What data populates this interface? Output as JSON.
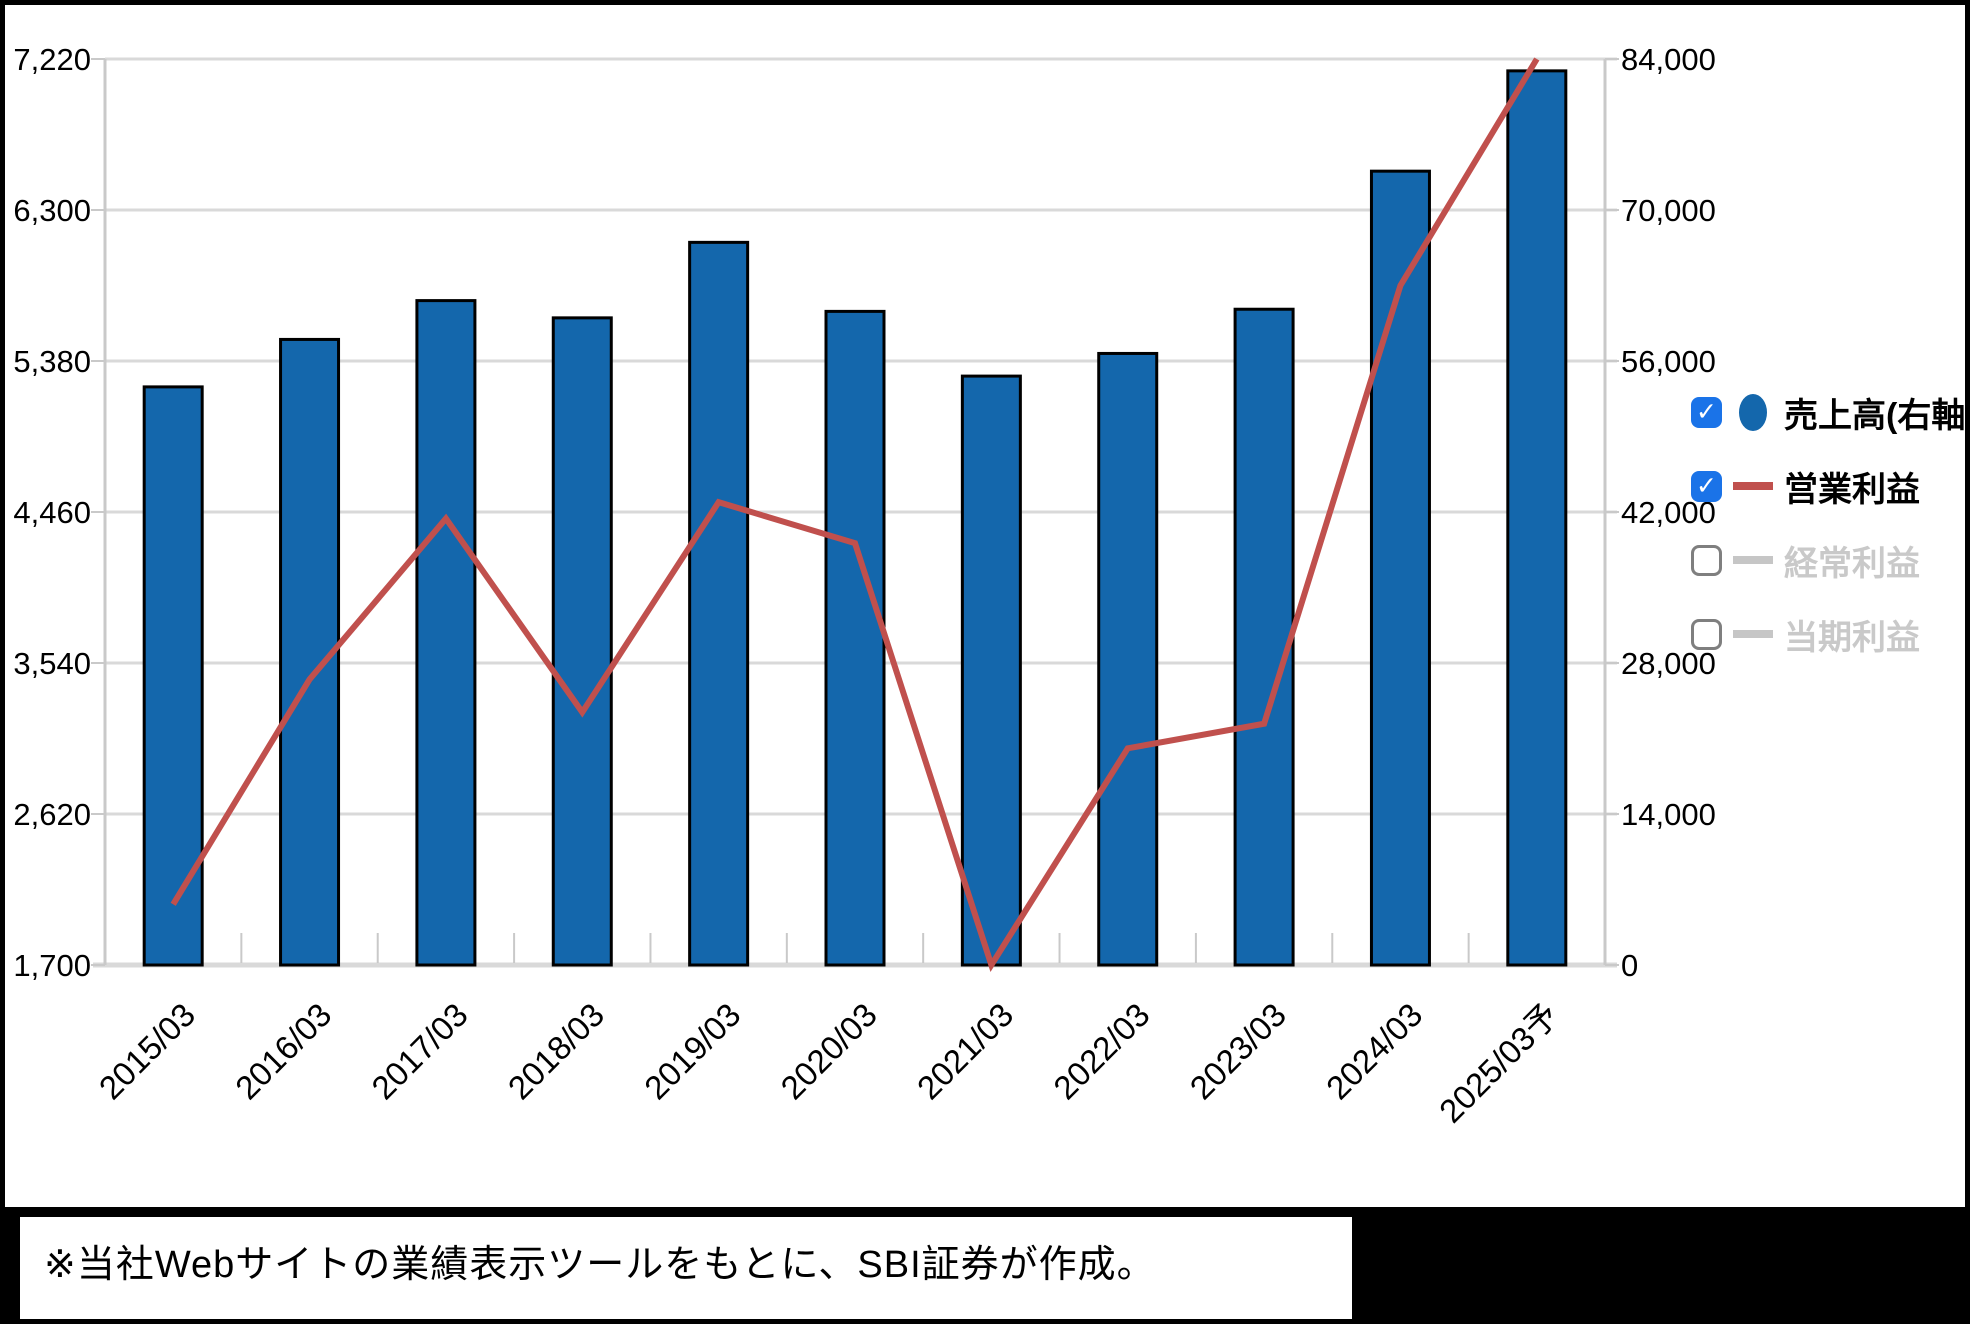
{
  "chart_data": {
    "type": "bar",
    "subtype": "combo-bar-line",
    "title": "",
    "categories": [
      "2015/03",
      "2016/03",
      "2017/03",
      "2018/03",
      "2019/03",
      "2020/03",
      "2021/03",
      "2022/03",
      "2023/03",
      "2024/03",
      "2025/03予"
    ],
    "series": [
      {
        "name": "売上高(右軸)",
        "type": "bar",
        "axis": "right",
        "visible": true,
        "values": [
          53600,
          58000,
          61600,
          60000,
          67000,
          60600,
          54600,
          56700,
          60800,
          73600,
          82900
        ]
      },
      {
        "name": "営業利益",
        "type": "line",
        "axis": "left",
        "visible": true,
        "values": [
          2070,
          3440,
          4420,
          3240,
          4520,
          4270,
          1700,
          3020,
          3170,
          5840,
          7220
        ]
      },
      {
        "name": "経常利益",
        "type": "line",
        "axis": "left",
        "visible": false
      },
      {
        "name": "当期利益",
        "type": "line",
        "axis": "left",
        "visible": false
      }
    ],
    "left_axis": {
      "min": 1700,
      "max": 7220,
      "tick_labels": [
        "7,220",
        "6,300",
        "5,380",
        "4,460",
        "3,540",
        "2,620",
        "1,700"
      ]
    },
    "right_axis": {
      "min": 0,
      "max": 84000,
      "tick_labels": [
        "84,000",
        "70,000",
        "56,000",
        "42,000",
        "28,000",
        "14,000",
        "0"
      ]
    },
    "grid": true,
    "legend_position": "right"
  },
  "legend": {
    "items": [
      {
        "label": "売上高(右軸)",
        "checked": true,
        "marker": "circle",
        "marker_color": "#1467ac",
        "text_color": "#000000"
      },
      {
        "label": "営業利益",
        "checked": true,
        "marker": "line",
        "marker_color": "#c0504d",
        "text_color": "#000000"
      },
      {
        "label": "経常利益",
        "checked": false,
        "marker": "line",
        "marker_color": "#c6c6c6",
        "text_color": "#c9c9c9"
      },
      {
        "label": "当期利益",
        "checked": false,
        "marker": "line",
        "marker_color": "#c6c6c6",
        "text_color": "#c9c9c9"
      }
    ]
  },
  "footer": {
    "note": "※当社Webサイトの業績表示ツールをもとに、SBI証券が作成。"
  },
  "colors": {
    "bar_fill": "#1467ac",
    "bar_stroke": "#000000",
    "line": "#c0504d",
    "grid": "#d9d9d9",
    "axis_line": "#c9c9c9",
    "axis_text": "#000000",
    "checkbox_checked": "#1a73e8",
    "disabled_text": "#c9c9c9"
  }
}
